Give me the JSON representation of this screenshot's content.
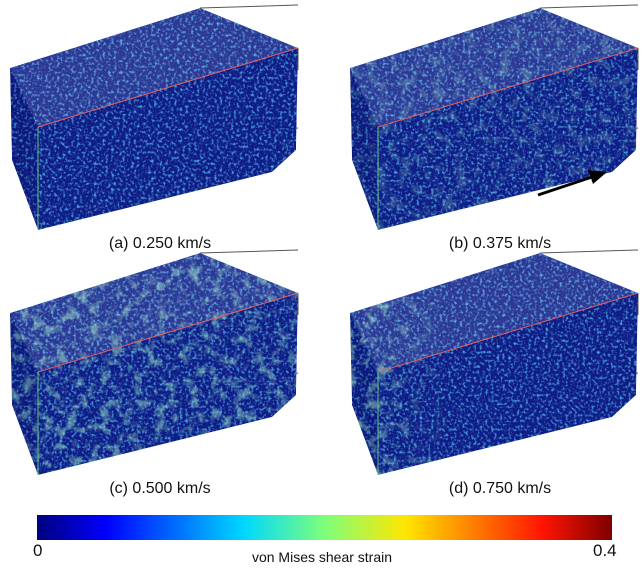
{
  "panels": [
    {
      "caption": "(a) 0.250 km/s"
    },
    {
      "caption": "(b) 0.375 km/s"
    },
    {
      "caption": "(c) 0.500 km/s"
    },
    {
      "caption": "(d) 0.750 km/s"
    }
  ],
  "colorbar": {
    "min": 0,
    "max": 0.4,
    "label": "von Mises shear strain"
  }
}
